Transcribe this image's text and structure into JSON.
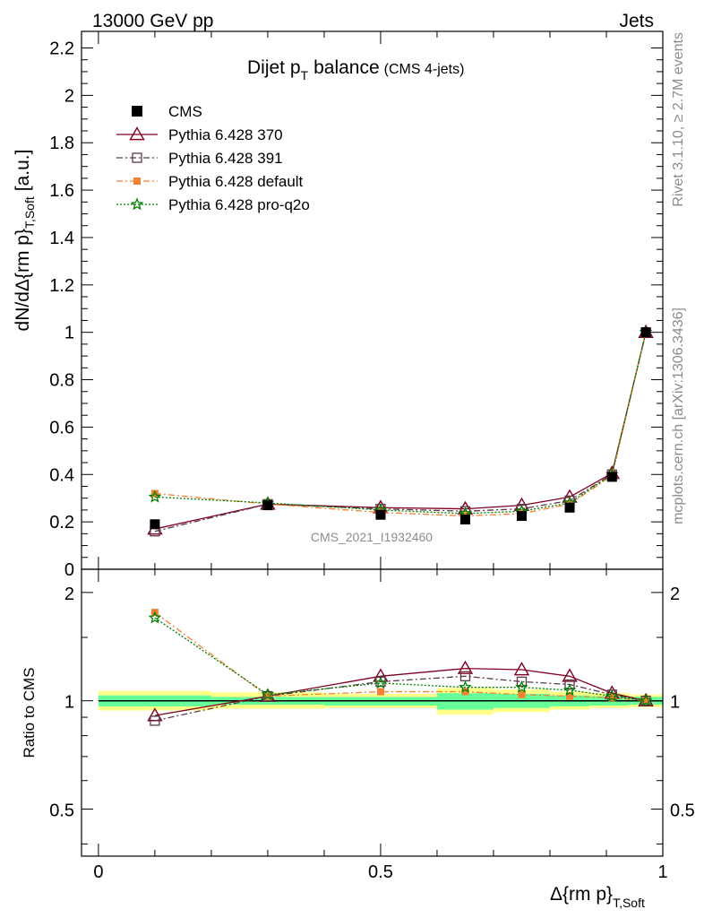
{
  "header": {
    "left": "13000 GeV pp",
    "right": "Jets"
  },
  "side": {
    "rivet": "Rivet 3.1.10, ≥ 2.7M events",
    "mcplots": "mcplots.cern.ch [arXiv:1306.3436]"
  },
  "colors": {
    "cms": "#000000",
    "p370": "#800020",
    "p391": "#5a3a4a",
    "pdefault": "#f58231",
    "pq2o": "#008000",
    "band_inner": "#66ff99",
    "band_outer": "#ffff88"
  },
  "chart_data": [
    {
      "type": "line",
      "title": "Dijet p",
      "title_sub": "T",
      "title_suffix": "balance",
      "title_note": "(CMS 4-jets)",
      "ylabel": "dN/dΔ{rm p}",
      "ylabel_sub": "T,Soft",
      "ylabel_unit": "[a.u.]",
      "watermark": "CMS_2021_I1932460",
      "xlim": [
        -0.03,
        1.0
      ],
      "ylim": [
        0,
        2.27
      ],
      "yticks": [
        "0",
        "0.2",
        "0.4",
        "0.6",
        "0.8",
        "1",
        "1.2",
        "1.4",
        "1.6",
        "1.8",
        "2",
        "2.2"
      ],
      "ytick_values": [
        0,
        0.2,
        0.4,
        0.6,
        0.8,
        1.0,
        1.2,
        1.4,
        1.6,
        1.8,
        2.0,
        2.2
      ],
      "x": [
        0.1,
        0.3,
        0.5,
        0.65,
        0.75,
        0.835,
        0.91,
        0.97
      ],
      "legend_position": "top-left",
      "series": [
        {
          "name": "CMS",
          "marker": "square-filled",
          "values": [
            0.19,
            0.27,
            0.23,
            0.21,
            0.225,
            0.26,
            0.39,
            1.0
          ]
        },
        {
          "name": "Pythia 6.428 370",
          "marker": "triangle-open",
          "line": "solid",
          "values": [
            0.17,
            0.275,
            0.26,
            0.255,
            0.27,
            0.305,
            0.405,
            1.0
          ]
        },
        {
          "name": "Pythia 6.428 391",
          "marker": "square-open",
          "line": "dashdot",
          "values": [
            0.16,
            0.275,
            0.255,
            0.245,
            0.255,
            0.29,
            0.4,
            1.0
          ]
        },
        {
          "name": "Pythia 6.428 default",
          "marker": "square-filled",
          "line": "dashdot",
          "values": [
            0.32,
            0.275,
            0.24,
            0.225,
            0.235,
            0.275,
            0.395,
            1.0
          ]
        },
        {
          "name": "Pythia 6.428 pro-q2o",
          "marker": "star",
          "line": "dotted",
          "values": [
            0.305,
            0.28,
            0.25,
            0.235,
            0.245,
            0.28,
            0.4,
            1.0
          ]
        }
      ]
    },
    {
      "type": "line",
      "ylabel": "Ratio to CMS",
      "xlabel": "Δ{rm p}",
      "xlabel_sub": "T,Soft",
      "xlim": [
        -0.03,
        1.0
      ],
      "ylim": [
        0.37,
        2.32
      ],
      "xticks": [
        "0",
        "0.5",
        "1"
      ],
      "xtick_values": [
        0,
        0.5,
        1.0
      ],
      "yticks": [
        "0.5",
        "1",
        "2"
      ],
      "ytick_values": [
        0.5,
        1.0,
        2.0
      ],
      "log_y": true,
      "x": [
        0.1,
        0.3,
        0.5,
        0.65,
        0.75,
        0.835,
        0.91,
        0.97
      ],
      "bands": {
        "edges": [
          0,
          0.2,
          0.4,
          0.6,
          0.7,
          0.8,
          0.87,
          0.94,
          1.0
        ],
        "inner_lo": [
          0.965,
          0.975,
          0.97,
          0.945,
          0.955,
          0.965,
          0.97,
          0.975
        ],
        "inner_hi": [
          1.035,
          1.025,
          1.025,
          1.05,
          1.045,
          1.035,
          1.03,
          1.025
        ],
        "outer_lo": [
          0.94,
          0.95,
          0.955,
          0.915,
          0.93,
          0.945,
          0.955,
          0.96
        ],
        "outer_hi": [
          1.065,
          1.055,
          1.045,
          1.085,
          1.075,
          1.06,
          1.05,
          1.04
        ]
      },
      "series": [
        {
          "name": "Pythia 6.428 370",
          "values": [
            0.91,
            1.03,
            1.17,
            1.23,
            1.22,
            1.17,
            1.05,
            1.0
          ]
        },
        {
          "name": "Pythia 6.428 391",
          "values": [
            0.88,
            1.03,
            1.13,
            1.17,
            1.13,
            1.11,
            1.04,
            1.0
          ]
        },
        {
          "name": "Pythia 6.428 default",
          "values": [
            1.76,
            1.03,
            1.06,
            1.06,
            1.04,
            1.03,
            1.02,
            1.0
          ]
        },
        {
          "name": "Pythia 6.428 pro-q2o",
          "values": [
            1.7,
            1.04,
            1.12,
            1.09,
            1.09,
            1.07,
            1.03,
            1.0
          ]
        }
      ]
    }
  ]
}
